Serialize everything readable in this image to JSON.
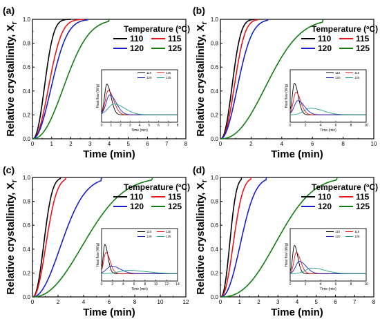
{
  "colors": {
    "110": "#000000",
    "115": "#e8141a",
    "120": "#1620c8",
    "125": "#0f7d10",
    "inset_125": "#1f9e8c"
  },
  "chart_data": [
    {
      "type": "line",
      "panel_label": "(a)",
      "xlabel": "Time (min)",
      "ylabel_main": "Relative crystallinity, X",
      "ylabel_sub": "r",
      "xlim": [
        0,
        8
      ],
      "ylim": [
        0,
        1.0
      ],
      "xticks": [
        "0",
        "1",
        "2",
        "3",
        "4",
        "5",
        "6",
        "7",
        "8"
      ],
      "yticks": [
        "0.0",
        "0.2",
        "0.4",
        "0.6",
        "0.8",
        "1.0"
      ],
      "legend": {
        "title_main": "Temperature (",
        "title_sup": "o",
        "title_end": "C)",
        "labels": [
          "110",
          "115",
          "120",
          "125"
        ]
      },
      "series": [
        {
          "name": "110",
          "color": "#000000",
          "t_half": 0.68,
          "n": 2.3,
          "x_end": 2.0
        },
        {
          "name": "115",
          "color": "#e8141a",
          "t_half": 0.92,
          "n": 2.2,
          "x_end": 2.7
        },
        {
          "name": "120",
          "color": "#1620c8",
          "t_half": 1.08,
          "n": 2.1,
          "x_end": 2.9
        },
        {
          "name": "125",
          "color": "#0f7d10",
          "t_half": 1.78,
          "n": 2.2,
          "x_end": 4.0
        }
      ],
      "inset": {
        "ylabel": "Heat flow (W/g)",
        "xlabel": "Time (min)",
        "xlim": [
          0,
          8
        ],
        "xticks": [
          "0",
          "1",
          "2",
          "3",
          "4",
          "5",
          "6",
          "7",
          "8"
        ],
        "legend_labels": [
          "110",
          "115",
          "120",
          "125"
        ],
        "peaks": [
          {
            "name": "110",
            "color": "#000000",
            "t_peak": 0.55,
            "height": 0.65,
            "sigma": 0.35
          },
          {
            "name": "115",
            "color": "#e8141a",
            "t_peak": 0.7,
            "height": 0.52,
            "sigma": 0.45
          },
          {
            "name": "120",
            "color": "#1620c8",
            "t_peak": 0.85,
            "height": 0.42,
            "sigma": 0.55
          },
          {
            "name": "125",
            "color": "#1f9e8c",
            "t_peak": 1.3,
            "height": 0.23,
            "sigma": 0.9
          }
        ]
      }
    },
    {
      "type": "line",
      "panel_label": "(b)",
      "xlabel": "Time (min)",
      "ylabel_main": "Relative crystallinity, X",
      "ylabel_sub": "r",
      "xlim": [
        0,
        10
      ],
      "ylim": [
        0,
        1.0
      ],
      "xticks": [
        "0",
        "2",
        "4",
        "6",
        "8",
        "10"
      ],
      "yticks": [
        "0.0",
        "0.2",
        "0.4",
        "0.6",
        "0.8",
        "1.0"
      ],
      "legend": {
        "title_main": "Temperature (",
        "title_sup": "o",
        "title_end": "C)",
        "labels": [
          "110",
          "115",
          "120",
          "125"
        ]
      },
      "series": [
        {
          "name": "110",
          "color": "#000000",
          "t_half": 0.82,
          "n": 2.3,
          "x_end": 2.2
        },
        {
          "name": "115",
          "color": "#e8141a",
          "t_half": 0.98,
          "n": 2.3,
          "x_end": 2.5
        },
        {
          "name": "120",
          "color": "#1620c8",
          "t_half": 1.22,
          "n": 2.1,
          "x_end": 3.1
        },
        {
          "name": "125",
          "color": "#0f7d10",
          "t_half": 3.2,
          "n": 2.3,
          "x_end": 6.7
        }
      ],
      "inset": {
        "ylabel": "Heat flow (W/g)",
        "xlabel": "Time (min)",
        "xlim": [
          0,
          10
        ],
        "xticks": [
          "0",
          "2",
          "4",
          "6",
          "8",
          "10"
        ],
        "legend_labels": [
          "110",
          "115",
          "120",
          "125"
        ],
        "peaks": [
          {
            "name": "110",
            "color": "#000000",
            "t_peak": 0.55,
            "height": 0.67,
            "sigma": 0.4
          },
          {
            "name": "115",
            "color": "#e8141a",
            "t_peak": 0.75,
            "height": 0.48,
            "sigma": 0.5
          },
          {
            "name": "120",
            "color": "#1620c8",
            "t_peak": 1.0,
            "height": 0.3,
            "sigma": 0.7
          },
          {
            "name": "125",
            "color": "#1f9e8c",
            "t_peak": 2.7,
            "height": 0.14,
            "sigma": 1.3
          }
        ]
      }
    },
    {
      "type": "line",
      "panel_label": "(c)",
      "xlabel": "Time (min)",
      "ylabel_main": "Relative crystallinity, X",
      "ylabel_sub": "r",
      "xlim": [
        0,
        12
      ],
      "ylim": [
        0,
        1.0
      ],
      "xticks": [
        "0",
        "2",
        "4",
        "6",
        "8",
        "10",
        "12"
      ],
      "yticks": [
        "0.0",
        "0.2",
        "0.4",
        "0.6",
        "0.8",
        "1.0"
      ],
      "legend": {
        "title_main": "Temperature (",
        "title_sup": "o",
        "title_end": "C)",
        "labels": [
          "110",
          "115",
          "120",
          "125"
        ]
      },
      "series": [
        {
          "name": "110",
          "color": "#000000",
          "t_half": 0.95,
          "n": 2.3,
          "x_end": 2.2
        },
        {
          "name": "115",
          "color": "#e8141a",
          "t_half": 1.15,
          "n": 2.2,
          "x_end": 2.6
        },
        {
          "name": "120",
          "color": "#1620c8",
          "t_half": 2.45,
          "n": 2.1,
          "x_end": 5.4
        },
        {
          "name": "125",
          "color": "#0f7d10",
          "t_half": 4.3,
          "n": 2.2,
          "x_end": 9.4
        }
      ],
      "inset": {
        "ylabel": "Heat flow (W/g)",
        "xlabel": "Time (min)",
        "xlim": [
          0,
          14
        ],
        "xticks": [
          "0",
          "2",
          "4",
          "6",
          "8",
          "10",
          "12",
          "14"
        ],
        "legend_labels": [
          "110",
          "115",
          "120",
          "125"
        ],
        "peaks": [
          {
            "name": "110",
            "color": "#000000",
            "t_peak": 0.6,
            "height": 0.62,
            "sigma": 0.45
          },
          {
            "name": "115",
            "color": "#e8141a",
            "t_peak": 0.8,
            "height": 0.45,
            "sigma": 0.6
          },
          {
            "name": "120",
            "color": "#1620c8",
            "t_peak": 1.8,
            "height": 0.16,
            "sigma": 1.3
          },
          {
            "name": "125",
            "color": "#1f9e8c",
            "t_peak": 5.0,
            "height": 0.07,
            "sigma": 2.6
          }
        ]
      }
    },
    {
      "type": "line",
      "panel_label": "(d)",
      "xlabel": "Time (min)",
      "ylabel_main": "Relative crystallinity, X",
      "ylabel_sub": "r",
      "xlim": [
        0,
        8
      ],
      "ylim": [
        0,
        1.0
      ],
      "xticks": [
        "0",
        "1",
        "2",
        "3",
        "4",
        "5",
        "6",
        "7",
        "8"
      ],
      "yticks": [
        "0.0",
        "0.2",
        "0.4",
        "0.6",
        "0.8",
        "1.0"
      ],
      "legend": {
        "title_main": "Temperature (",
        "title_sup": "o",
        "title_end": "C)",
        "labels": [
          "110",
          "115",
          "120",
          "125"
        ]
      },
      "series": [
        {
          "name": "110",
          "color": "#000000",
          "t_half": 0.52,
          "n": 2.4,
          "x_end": 1.1
        },
        {
          "name": "115",
          "color": "#e8141a",
          "t_half": 0.72,
          "n": 2.3,
          "x_end": 1.6
        },
        {
          "name": "120",
          "color": "#1620c8",
          "t_half": 1.12,
          "n": 2.3,
          "x_end": 2.4
        },
        {
          "name": "125",
          "color": "#0f7d10",
          "t_half": 3.05,
          "n": 2.5,
          "x_end": 6.1
        }
      ],
      "inset": {
        "ylabel": "Heat flow (W/g)",
        "xlabel": "Time (min)",
        "xlim": [
          0,
          10
        ],
        "xticks": [
          "0",
          "2",
          "4",
          "6",
          "8",
          "10"
        ],
        "legend_labels": [
          "110",
          "115",
          "120",
          "125"
        ],
        "peaks": [
          {
            "name": "110",
            "color": "#000000",
            "t_peak": 0.55,
            "height": 0.6,
            "sigma": 0.35
          },
          {
            "name": "115",
            "color": "#e8141a",
            "t_peak": 0.8,
            "height": 0.45,
            "sigma": 0.45
          },
          {
            "name": "120",
            "color": "#1620c8",
            "t_peak": 1.2,
            "height": 0.26,
            "sigma": 0.7
          },
          {
            "name": "125",
            "color": "#1f9e8c",
            "t_peak": 2.9,
            "height": 0.12,
            "sigma": 1.3
          }
        ]
      }
    }
  ]
}
